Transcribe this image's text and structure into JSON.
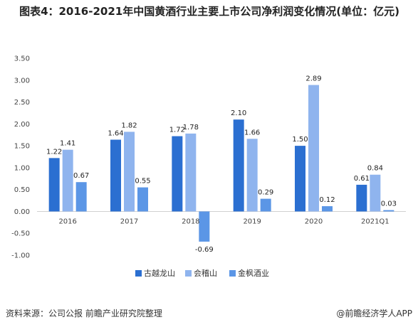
{
  "title": "图表4：2016-2021年中国黄酒行业主要上市公司净利润变化情况(单位：亿元)",
  "footer": {
    "source": "资料来源：公司公报 前瞻产业研究院整理",
    "brand": "@前瞻经济学人APP"
  },
  "chart_data": {
    "type": "bar",
    "title": "图表4：2016-2021年中国黄酒行业主要上市公司净利润变化情况(单位：亿元)",
    "categories": [
      "2016",
      "2017",
      "2018",
      "2019",
      "2020",
      "2021Q1"
    ],
    "series": [
      {
        "name": "古越龙山",
        "color": "#2b6fd1",
        "values": [
          1.22,
          1.64,
          1.72,
          2.1,
          1.5,
          0.61
        ],
        "labels": [
          "1.22",
          "1.64",
          "1.72",
          "2.10",
          "1.50",
          "0.61"
        ]
      },
      {
        "name": "会稽山",
        "color": "#8fb4ee",
        "values": [
          1.41,
          1.82,
          1.78,
          1.66,
          2.89,
          0.84
        ],
        "labels": [
          "1.41",
          "1.82",
          "1.78",
          "1.66",
          "2.89",
          "0.84"
        ]
      },
      {
        "name": "金枫酒业",
        "color": "#5b96e6",
        "values": [
          0.67,
          0.55,
          -0.69,
          0.29,
          0.12,
          0.03
        ],
        "labels": [
          "0.67",
          "0.55",
          "-0.69",
          "0.29",
          "0.12",
          "0.03"
        ]
      }
    ],
    "yticks": [
      "-1.00",
      "-0.50",
      "0.00",
      "0.50",
      "1.00",
      "1.50",
      "2.00",
      "2.50",
      "3.00",
      "3.50"
    ],
    "ylim": [
      -1,
      3.5
    ],
    "xlabel": "",
    "ylabel": "",
    "grid": false,
    "legend": "bottom"
  }
}
